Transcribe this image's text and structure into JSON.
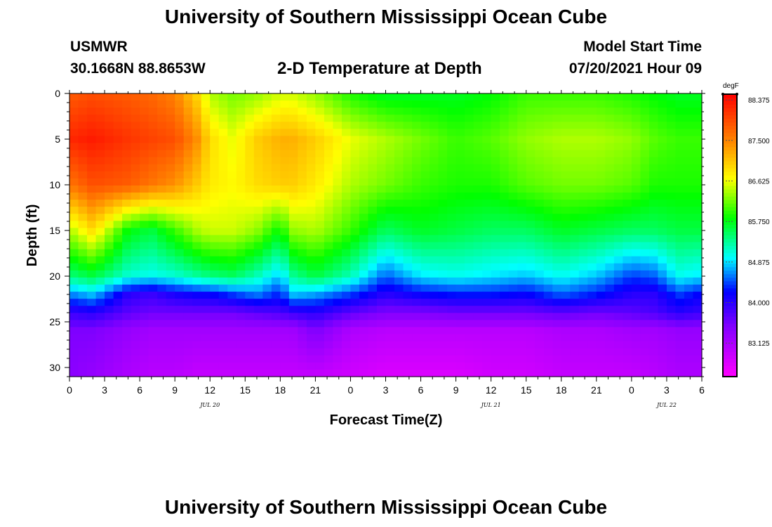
{
  "header": {
    "title": "University of Southern Mississippi Ocean Cube",
    "station": "USMWR",
    "coords": "30.1668N  88.8653W",
    "subtitle": "2-D Temperature at Depth",
    "start_label": "Model Start Time",
    "start_value": "07/20/2021 Hour 09"
  },
  "footer": {
    "title": "University of Southern Mississippi Ocean Cube"
  },
  "chart_data": {
    "type": "heatmap",
    "title": "2-D Temperature at Depth",
    "xlabel": "Forecast Time(Z)",
    "ylabel": "Depth (ft)",
    "x_range_hours": [
      0,
      54
    ],
    "x_ticks": [
      "0",
      "3",
      "6",
      "9",
      "12",
      "15",
      "18",
      "21",
      "0",
      "3",
      "6",
      "9",
      "12",
      "15",
      "18",
      "21",
      "0",
      "3",
      "6"
    ],
    "date_labels": [
      {
        "hour": 12,
        "label": "JUL 20"
      },
      {
        "hour": 36,
        "label": "JUL 21"
      },
      {
        "hour": 51,
        "label": "JUL 22"
      }
    ],
    "y_range_ft": [
      0,
      31
    ],
    "y_ticks": [
      "0",
      "5",
      "10",
      "15",
      "20",
      "25",
      "30"
    ],
    "colorbar": {
      "unit": "degF",
      "min": 82.4,
      "max": 88.5,
      "ticks": [
        "88.375",
        "87.500",
        "86.625",
        "85.750",
        "84.875",
        "84.000",
        "83.125"
      ],
      "tick_values": [
        88.375,
        87.5,
        86.625,
        85.75,
        84.875,
        84.0,
        83.125
      ]
    },
    "colors": {
      "magenta": "#ff00ff",
      "violet": "#8000ff",
      "blue": "#0000ff",
      "cyan": "#00ffff",
      "green": "#00ff00",
      "yellow": "#ffff00",
      "orange": "#ff8000",
      "red": "#ff0000"
    },
    "profile_hours": [
      0,
      2,
      5,
      7,
      9,
      11,
      12,
      14,
      16,
      18,
      19,
      21,
      24,
      27,
      30,
      33,
      36,
      39,
      42,
      45,
      48,
      50,
      52,
      54
    ],
    "profile_depths_ft": [
      0,
      5,
      10,
      15,
      20,
      22,
      24,
      26,
      31
    ],
    "temperature_profiles_degF": [
      [
        87.8,
        88.2,
        87.6,
        86.4,
        85.4,
        84.6,
        83.9,
        83.5,
        83.4
      ],
      [
        87.9,
        88.3,
        87.9,
        86.9,
        85.6,
        84.8,
        84.0,
        83.5,
        83.3
      ],
      [
        87.8,
        88.1,
        87.8,
        85.8,
        85.1,
        84.0,
        83.7,
        83.3,
        83.1
      ],
      [
        87.7,
        88.0,
        87.6,
        85.6,
        85.0,
        83.9,
        83.6,
        83.2,
        83.0
      ],
      [
        87.5,
        87.9,
        87.4,
        86.0,
        85.1,
        84.1,
        83.6,
        83.2,
        83.0
      ],
      [
        86.9,
        87.4,
        87.0,
        86.4,
        85.3,
        84.2,
        83.6,
        83.2,
        82.9
      ],
      [
        86.4,
        86.9,
        86.8,
        86.5,
        85.4,
        84.2,
        83.6,
        83.2,
        82.9
      ],
      [
        86.2,
        86.6,
        86.7,
        86.5,
        85.5,
        84.4,
        83.6,
        83.2,
        82.9
      ],
      [
        86.3,
        87.0,
        86.9,
        86.3,
        85.2,
        84.6,
        83.7,
        83.2,
        82.9
      ],
      [
        86.5,
        87.2,
        87.0,
        85.8,
        84.8,
        84.3,
        83.8,
        83.2,
        82.9
      ],
      [
        86.5,
        87.2,
        87.0,
        86.3,
        85.3,
        84.8,
        83.9,
        83.2,
        82.9
      ],
      [
        86.3,
        87.0,
        86.8,
        86.4,
        85.6,
        84.7,
        84.0,
        83.5,
        82.9
      ],
      [
        85.9,
        86.6,
        86.4,
        86.0,
        85.2,
        84.4,
        83.7,
        83.1,
        82.8
      ],
      [
        85.7,
        86.4,
        86.2,
        85.5,
        84.5,
        84.0,
        83.5,
        83.0,
        82.7
      ],
      [
        85.7,
        86.2,
        86.0,
        85.7,
        84.9,
        84.2,
        83.5,
        83.0,
        82.7
      ],
      [
        85.7,
        86.0,
        85.9,
        85.6,
        85.0,
        84.3,
        83.6,
        83.0,
        82.7
      ],
      [
        85.8,
        86.1,
        85.9,
        85.5,
        84.9,
        84.3,
        83.6,
        83.0,
        82.8
      ],
      [
        86.0,
        86.3,
        86.1,
        85.5,
        84.8,
        84.2,
        83.6,
        83.0,
        82.8
      ],
      [
        86.0,
        86.4,
        86.2,
        85.7,
        85.0,
        84.5,
        83.7,
        83.1,
        82.9
      ],
      [
        86.0,
        86.4,
        86.2,
        85.6,
        84.8,
        84.3,
        83.6,
        83.1,
        82.9
      ],
      [
        85.9,
        86.3,
        86.1,
        85.5,
        84.4,
        84.0,
        83.7,
        83.2,
        82.9
      ],
      [
        85.8,
        86.1,
        85.9,
        85.5,
        84.5,
        84.0,
        83.8,
        83.2,
        83.0
      ],
      [
        85.7,
        86.0,
        85.9,
        85.6,
        85.0,
        84.4,
        84.0,
        83.3,
        83.1
      ],
      [
        85.7,
        86.0,
        85.9,
        85.6,
        84.9,
        84.2,
        83.9,
        83.3,
        83.1
      ]
    ]
  }
}
